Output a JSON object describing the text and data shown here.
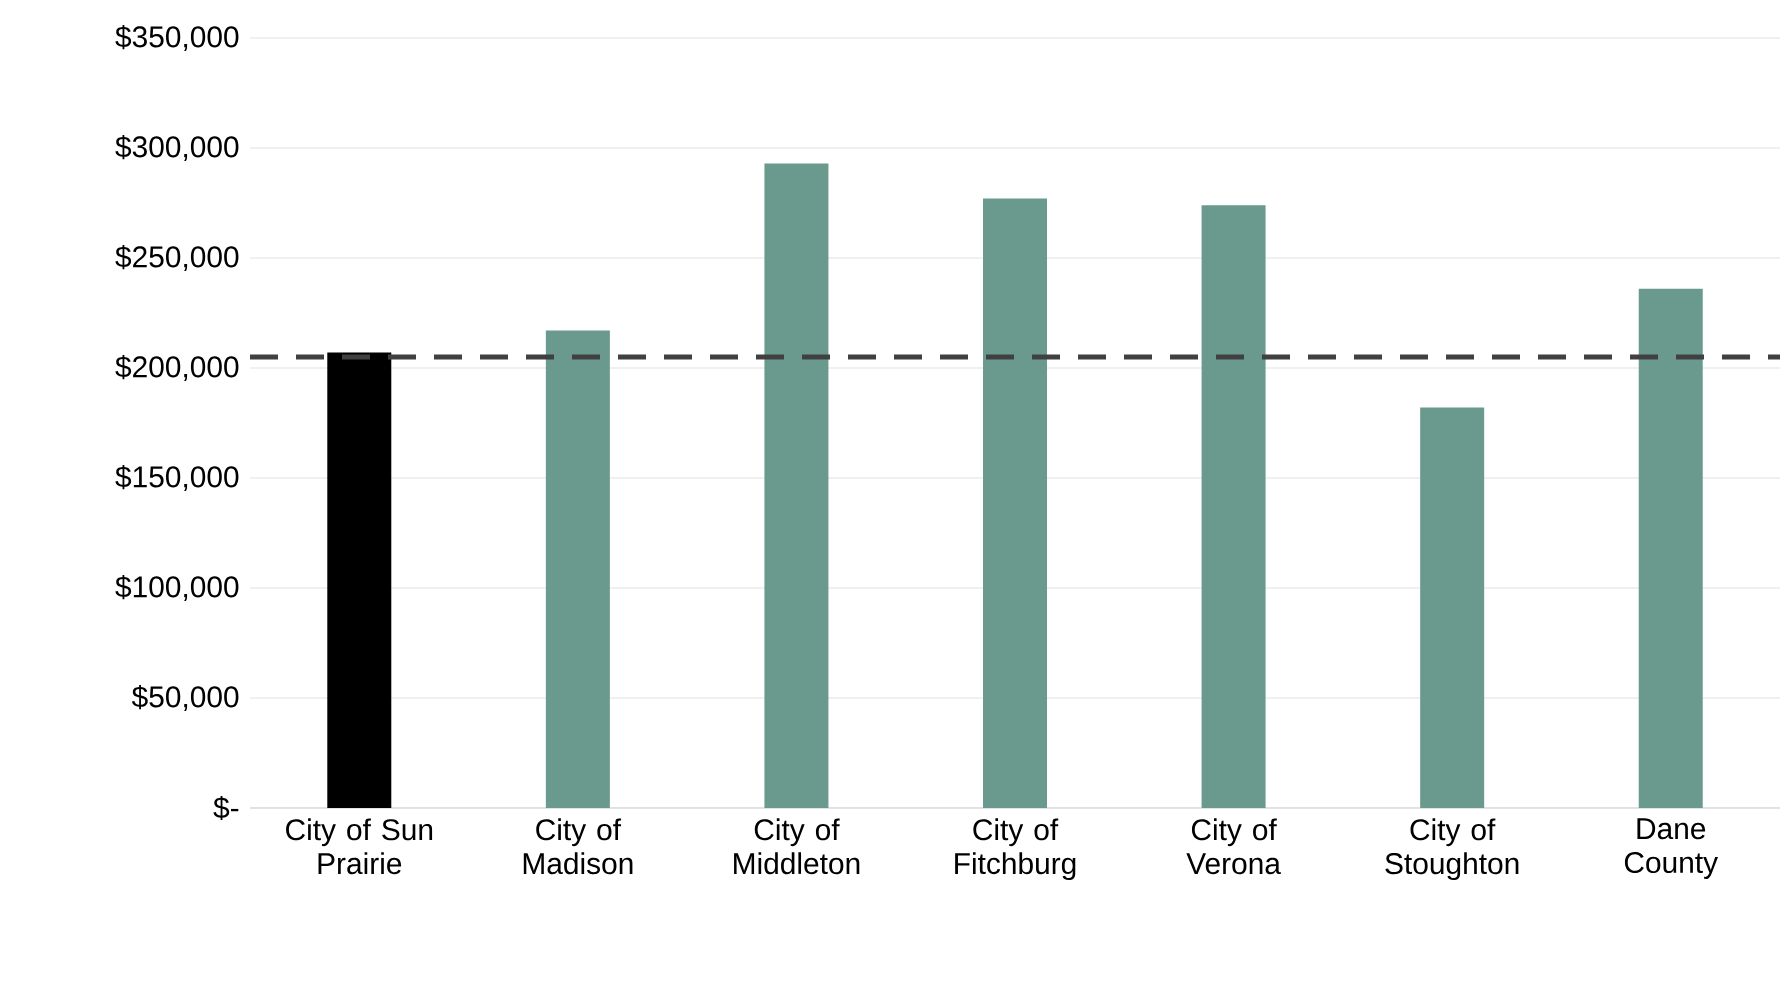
{
  "chart_data": {
    "type": "bar",
    "categories": [
      "City of Sun Prairie",
      "City of Madison",
      "City of Middleton",
      "City of Fitchburg",
      "City of Verona",
      "City of Stoughton",
      "Dane County"
    ],
    "values": [
      207000,
      217000,
      293000,
      277000,
      274000,
      182000,
      236000
    ],
    "colors": [
      "#000000",
      "#6a9a8e",
      "#6a9a8e",
      "#6a9a8e",
      "#6a9a8e",
      "#6a9a8e",
      "#6a9a8e"
    ],
    "ylim": [
      0,
      350000
    ],
    "yticks": [
      {
        "value": 0,
        "label": "$-"
      },
      {
        "value": 50000,
        "label": "$50,000"
      },
      {
        "value": 100000,
        "label": "$100,000"
      },
      {
        "value": 150000,
        "label": "$150,000"
      },
      {
        "value": 200000,
        "label": "$200,000"
      },
      {
        "value": 250000,
        "label": "$250,000"
      },
      {
        "value": 300000,
        "label": "$300,000"
      },
      {
        "value": 350000,
        "label": "$350,000"
      }
    ],
    "ref_lines": [
      {
        "axis": "y",
        "value": 205000,
        "color": "#404040",
        "line_style": "dashed"
      }
    ],
    "grid": "y"
  }
}
